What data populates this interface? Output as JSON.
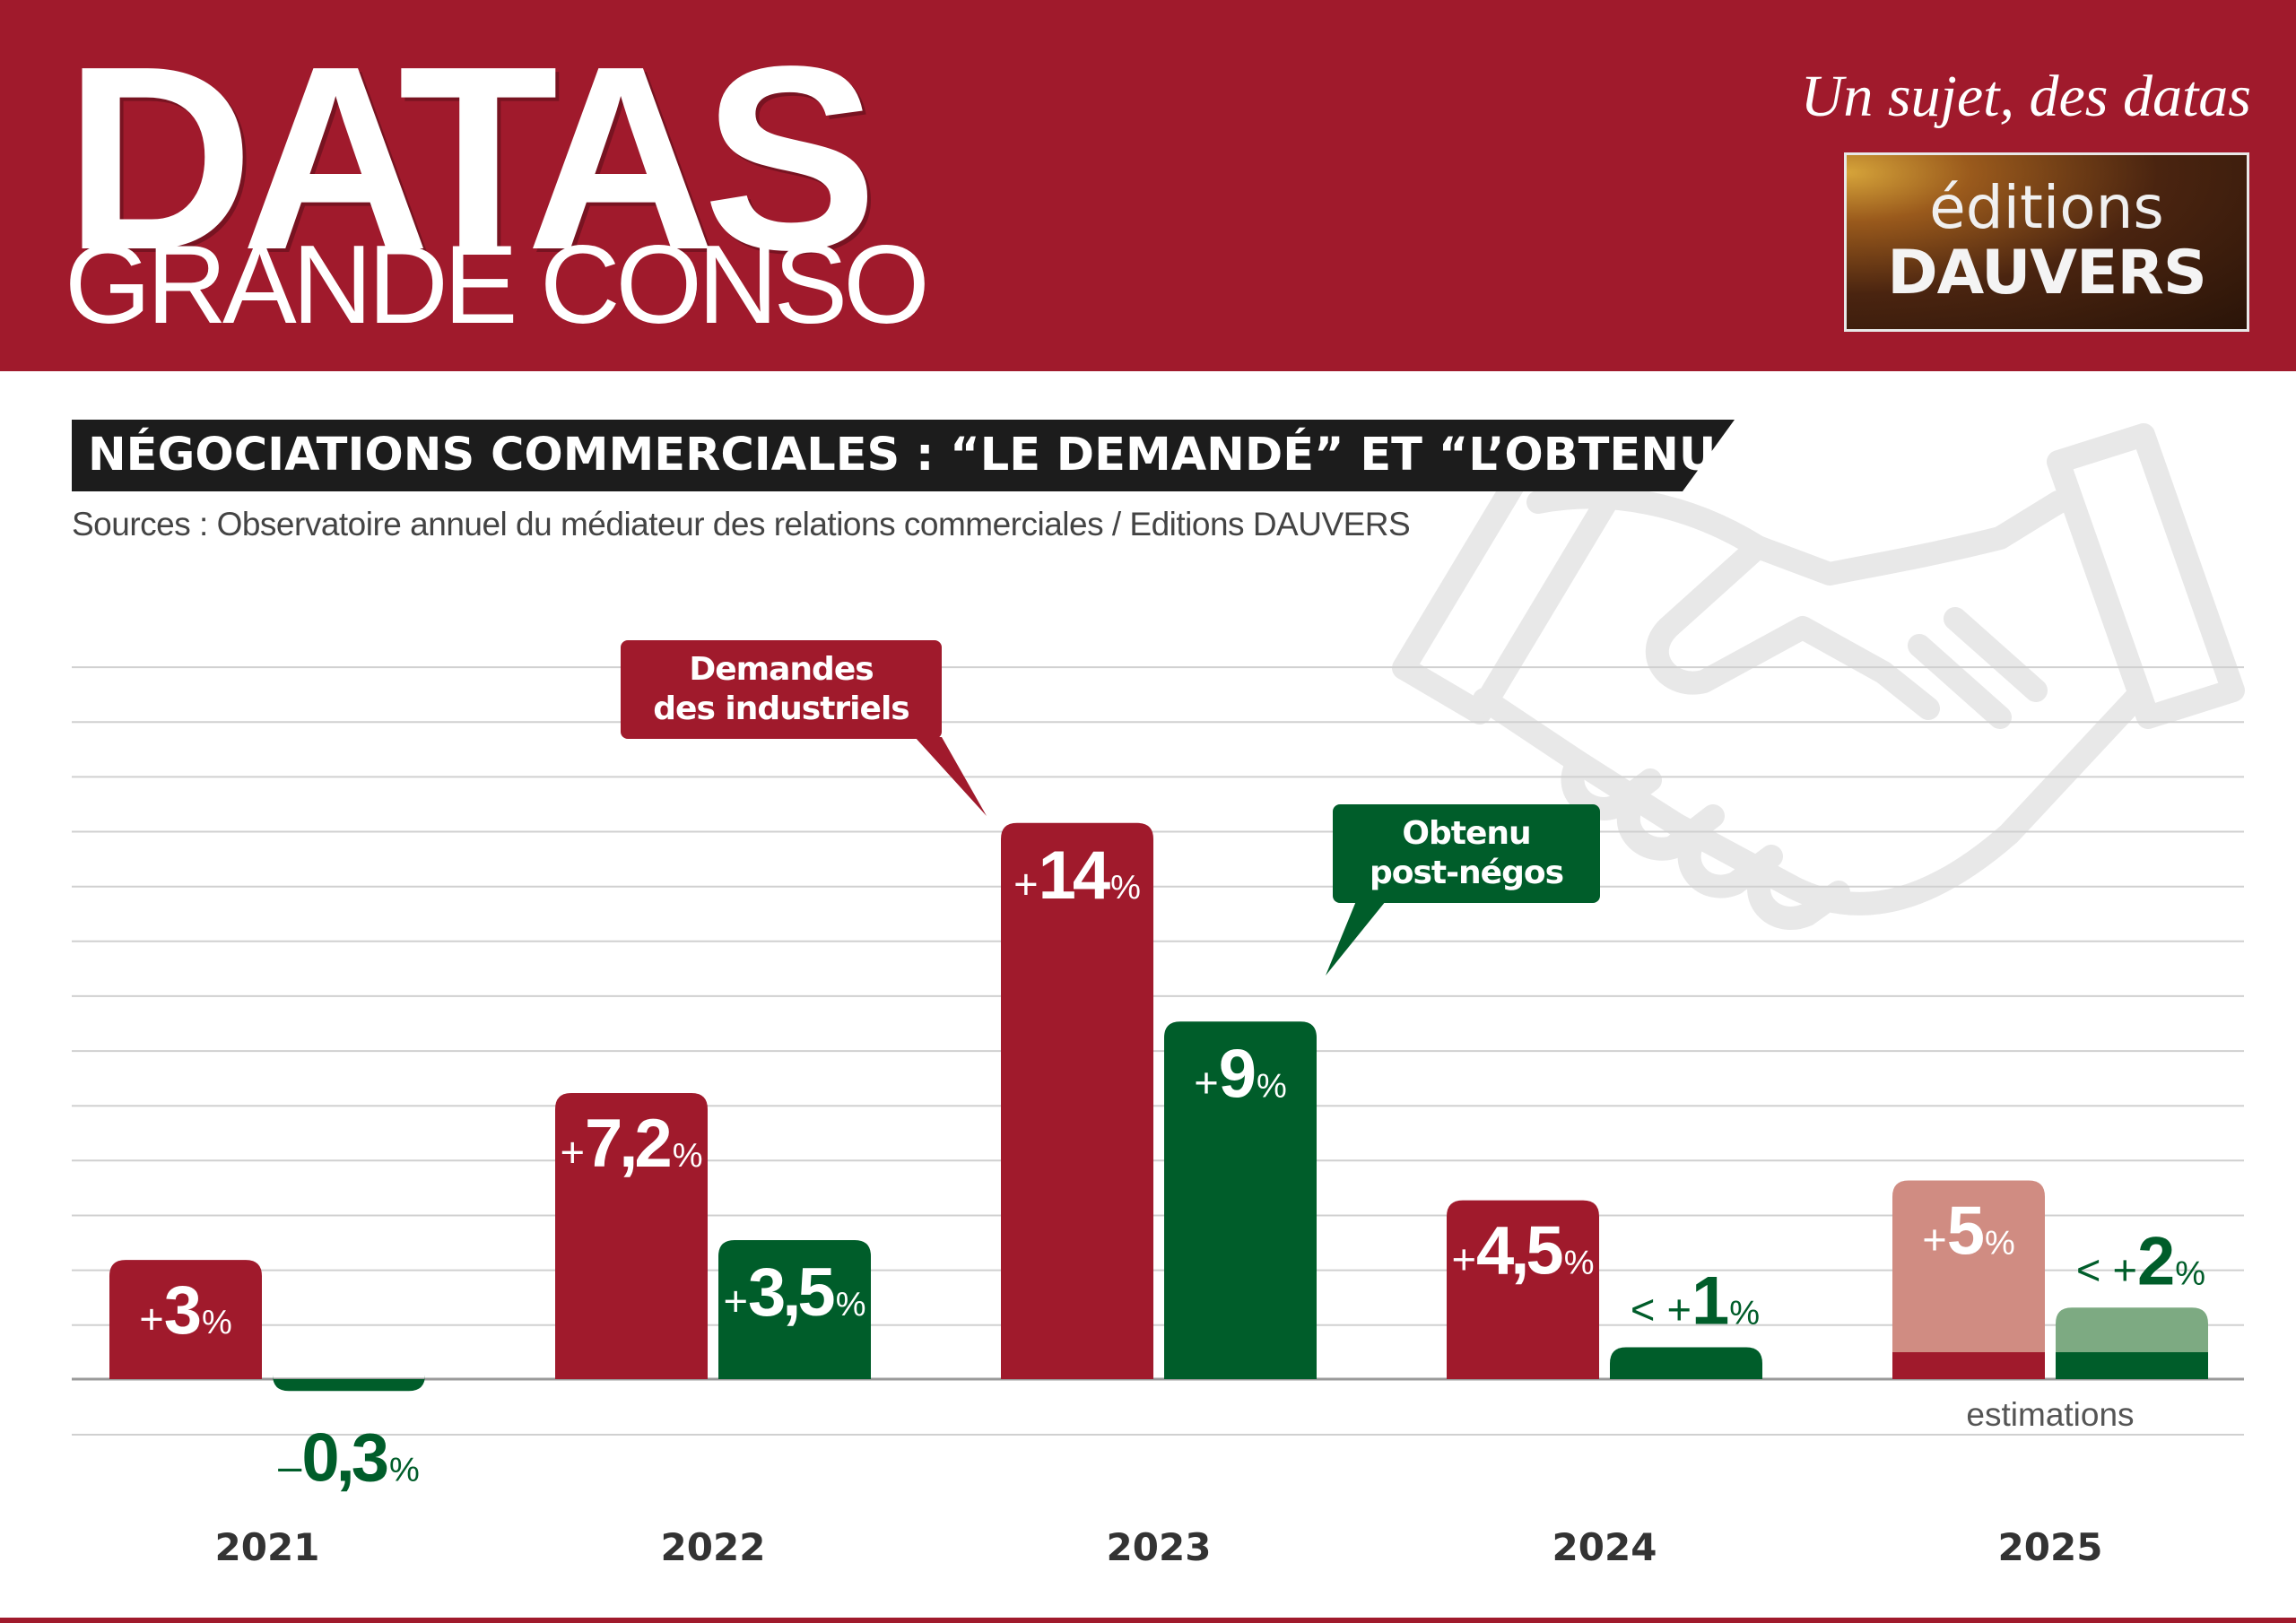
{
  "header": {
    "brand": "DATAS",
    "subbrand": "GRANDE CONSO",
    "tagline": "Un sujet, des datas",
    "logo": {
      "line1": "éditions",
      "line2": "DAUVERS"
    }
  },
  "colors": {
    "header_red": "#a01a2c",
    "demand_red": "#a01a2c",
    "obtained_green": "#005d2a",
    "estimate_red": "#d08c82",
    "estimate_green": "#7daa82",
    "title_band": "#1c1c1c"
  },
  "icons": {
    "background": "handshake-icon"
  },
  "chart_data": {
    "type": "bar",
    "title": "NÉGOCIATIONS COMMERCIALES : “LE DEMANDÉ” ET “L’OBTENU”",
    "source": "Sources : Observatoire annuel du médiateur des relations commerciales / Editions DAUVERS",
    "categories": [
      "2021",
      "2022",
      "2023",
      "2024",
      "2025"
    ],
    "series": [
      {
        "name": "Demandes des industriels",
        "values": [
          3,
          7.2,
          14,
          4.5,
          5
        ],
        "labels": [
          {
            "prefix": "+",
            "num": "3",
            "suffix": "%"
          },
          {
            "prefix": "+",
            "num": "7,2",
            "suffix": "%"
          },
          {
            "prefix": "+",
            "num": "14",
            "suffix": "%"
          },
          {
            "prefix": "+",
            "num": "4,5",
            "suffix": "%"
          },
          {
            "prefix": "+",
            "num": "5",
            "suffix": "%"
          }
        ]
      },
      {
        "name": "Obtenu post-négos",
        "values": [
          -0.3,
          3.5,
          9,
          0.8,
          1.8
        ],
        "labels": [
          {
            "prefix": "–",
            "num": "0,3",
            "suffix": "%"
          },
          {
            "prefix": "+",
            "num": "3,5",
            "suffix": "%"
          },
          {
            "prefix": "+",
            "num": "9",
            "suffix": "%"
          },
          {
            "prefix": "< +",
            "num": "1",
            "suffix": "%"
          },
          {
            "prefix": "< +",
            "num": "2",
            "suffix": "%"
          }
        ]
      }
    ],
    "callouts": {
      "demand": [
        "Demandes",
        "des industriels"
      ],
      "obtained": [
        "Obtenu",
        "post-négos"
      ]
    },
    "estimate_category": "2025",
    "estimate_label": "estimations",
    "ylim": [
      -1,
      14
    ],
    "grid": true,
    "legend": "callouts"
  }
}
